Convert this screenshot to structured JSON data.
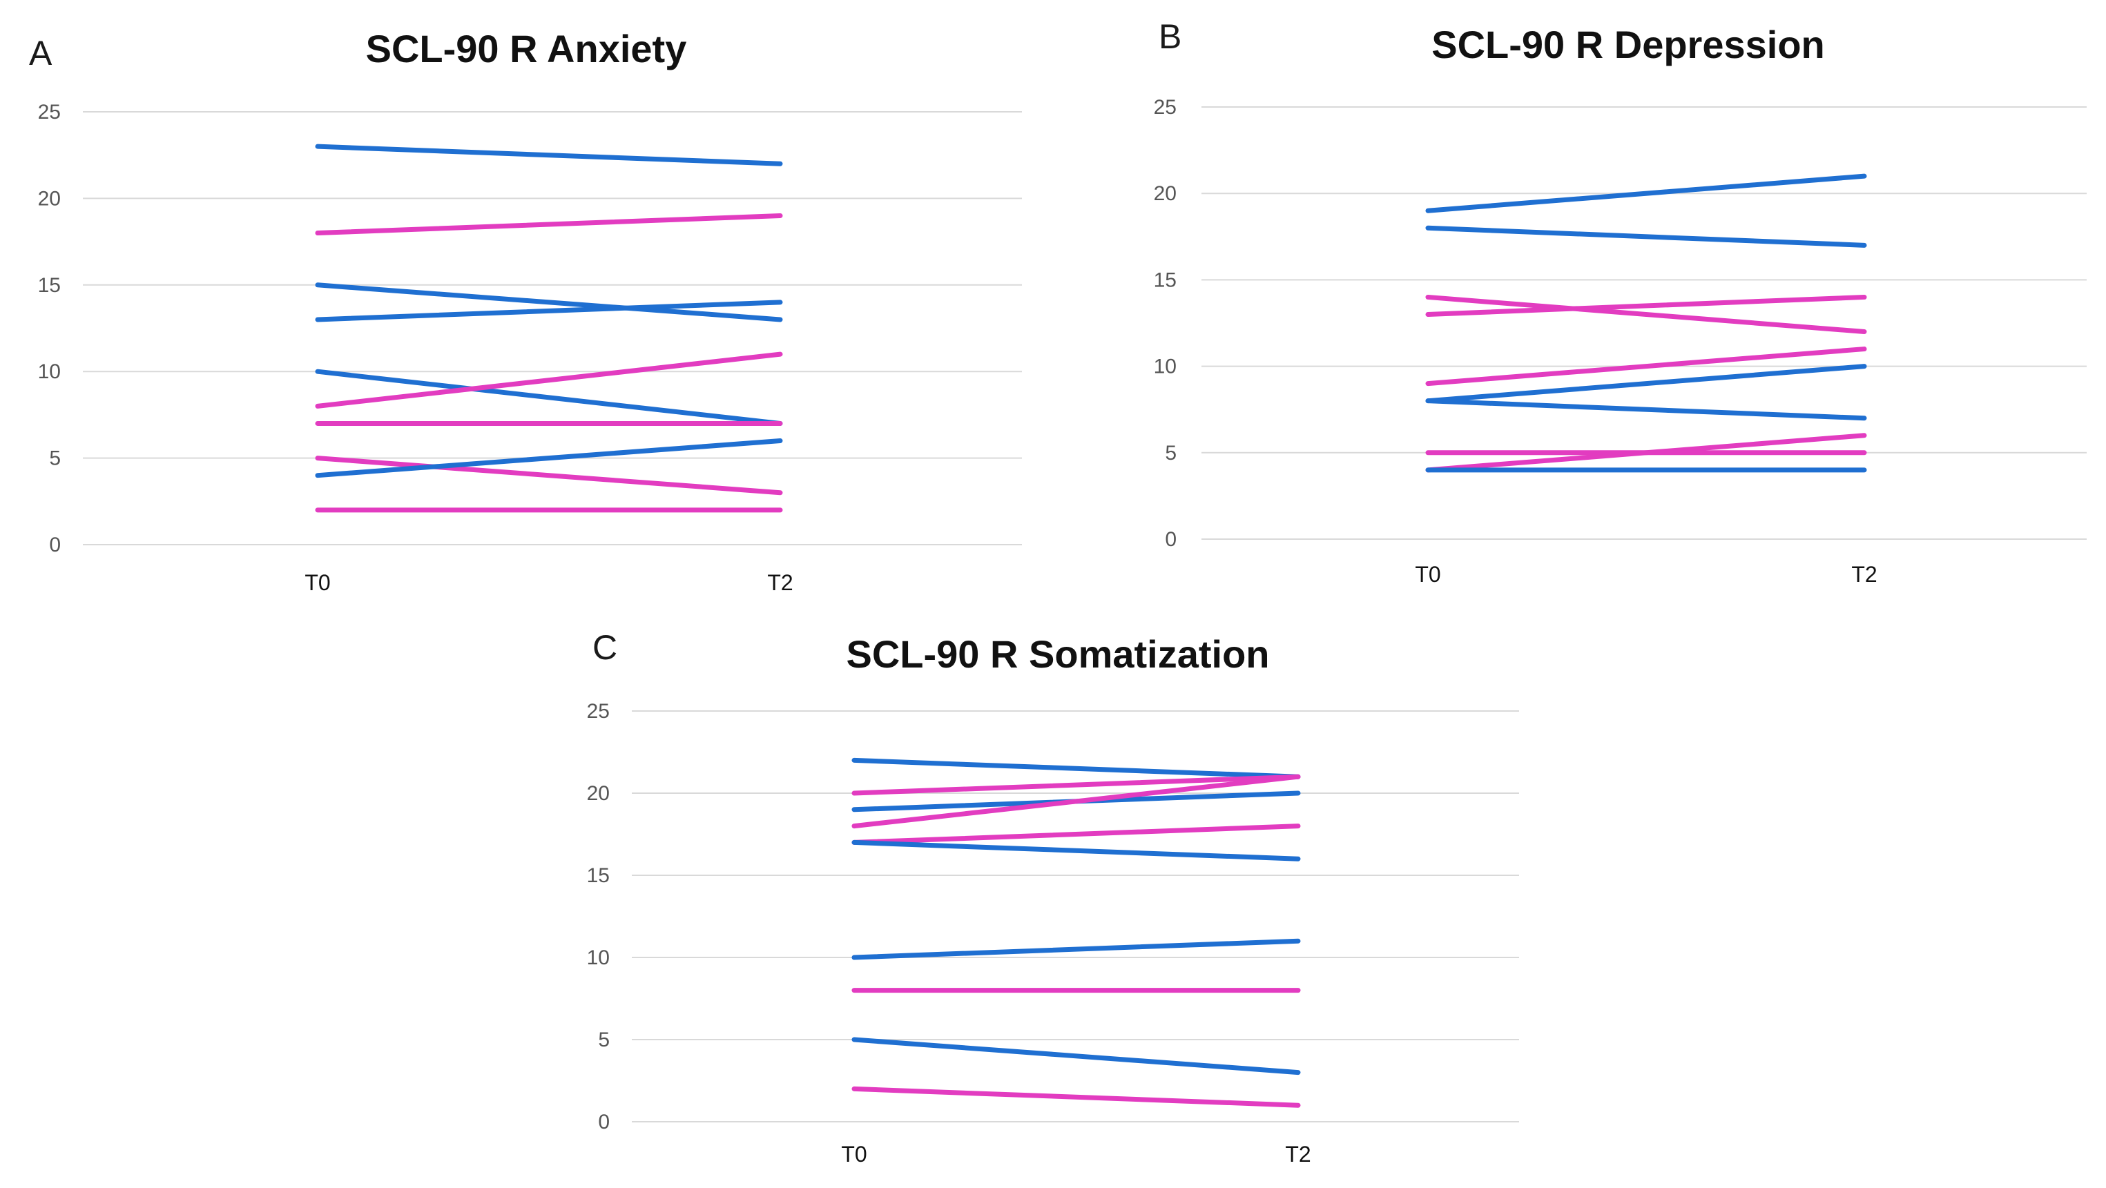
{
  "colors": {
    "blue": "#1f6fd1",
    "pink": "#e23cc0"
  },
  "chart_data": [
    {
      "panel": "A",
      "type": "line",
      "title": "SCL-90 R Anxiety",
      "categories": [
        "T0",
        "T2"
      ],
      "yticks": [
        0,
        5,
        10,
        15,
        20,
        25
      ],
      "ylim": [
        0,
        25
      ],
      "grid": true,
      "series": [
        {
          "name": "blue-1",
          "color": "blue",
          "values": [
            23,
            22
          ]
        },
        {
          "name": "pink-1",
          "color": "pink",
          "values": [
            18,
            19
          ]
        },
        {
          "name": "blue-2",
          "color": "blue",
          "values": [
            15,
            13
          ]
        },
        {
          "name": "blue-3",
          "color": "blue",
          "values": [
            13,
            14
          ]
        },
        {
          "name": "blue-4",
          "color": "blue",
          "values": [
            10,
            7
          ]
        },
        {
          "name": "pink-2",
          "color": "pink",
          "values": [
            8,
            11
          ]
        },
        {
          "name": "pink-3",
          "color": "pink",
          "values": [
            7,
            7
          ]
        },
        {
          "name": "pink-4",
          "color": "pink",
          "values": [
            5,
            3
          ]
        },
        {
          "name": "blue-5",
          "color": "blue",
          "values": [
            4,
            6
          ]
        },
        {
          "name": "pink-5",
          "color": "pink",
          "values": [
            2,
            2
          ]
        }
      ]
    },
    {
      "panel": "B",
      "type": "line",
      "title": "SCL-90 R Depression",
      "categories": [
        "T0",
        "T2"
      ],
      "yticks": [
        0,
        5,
        10,
        15,
        20,
        25
      ],
      "ylim": [
        0,
        25
      ],
      "grid": true,
      "series": [
        {
          "name": "blue-1",
          "color": "blue",
          "values": [
            19,
            21
          ]
        },
        {
          "name": "blue-2",
          "color": "blue",
          "values": [
            18,
            17
          ]
        },
        {
          "name": "pink-1",
          "color": "pink",
          "values": [
            14,
            12
          ]
        },
        {
          "name": "pink-2",
          "color": "pink",
          "values": [
            13,
            14
          ]
        },
        {
          "name": "pink-3",
          "color": "pink",
          "values": [
            9,
            11
          ]
        },
        {
          "name": "blue-3",
          "color": "blue",
          "values": [
            8,
            10
          ]
        },
        {
          "name": "blue-4",
          "color": "blue",
          "values": [
            8,
            7
          ]
        },
        {
          "name": "pink-4",
          "color": "pink",
          "values": [
            5,
            5
          ]
        },
        {
          "name": "pink-5",
          "color": "pink",
          "values": [
            4,
            6
          ]
        },
        {
          "name": "blue-5",
          "color": "blue",
          "values": [
            4,
            4
          ]
        }
      ]
    },
    {
      "panel": "C",
      "type": "line",
      "title": "SCL-90 R Somatization",
      "categories": [
        "T0",
        "T2"
      ],
      "yticks": [
        0,
        5,
        10,
        15,
        20,
        25
      ],
      "ylim": [
        0,
        25
      ],
      "grid": true,
      "series": [
        {
          "name": "blue-1",
          "color": "blue",
          "values": [
            22,
            21
          ]
        },
        {
          "name": "pink-1",
          "color": "pink",
          "values": [
            20,
            21
          ]
        },
        {
          "name": "blue-2",
          "color": "blue",
          "values": [
            19,
            20
          ]
        },
        {
          "name": "pink-2",
          "color": "pink",
          "values": [
            18,
            21
          ]
        },
        {
          "name": "pink-3",
          "color": "pink",
          "values": [
            17,
            18
          ]
        },
        {
          "name": "blue-3",
          "color": "blue",
          "values": [
            17,
            16
          ]
        },
        {
          "name": "blue-4",
          "color": "blue",
          "values": [
            10,
            11
          ]
        },
        {
          "name": "pink-4",
          "color": "pink",
          "values": [
            8,
            8
          ]
        },
        {
          "name": "blue-5",
          "color": "blue",
          "values": [
            5,
            3
          ]
        },
        {
          "name": "pink-5",
          "color": "pink",
          "values": [
            2,
            1
          ]
        }
      ]
    }
  ]
}
